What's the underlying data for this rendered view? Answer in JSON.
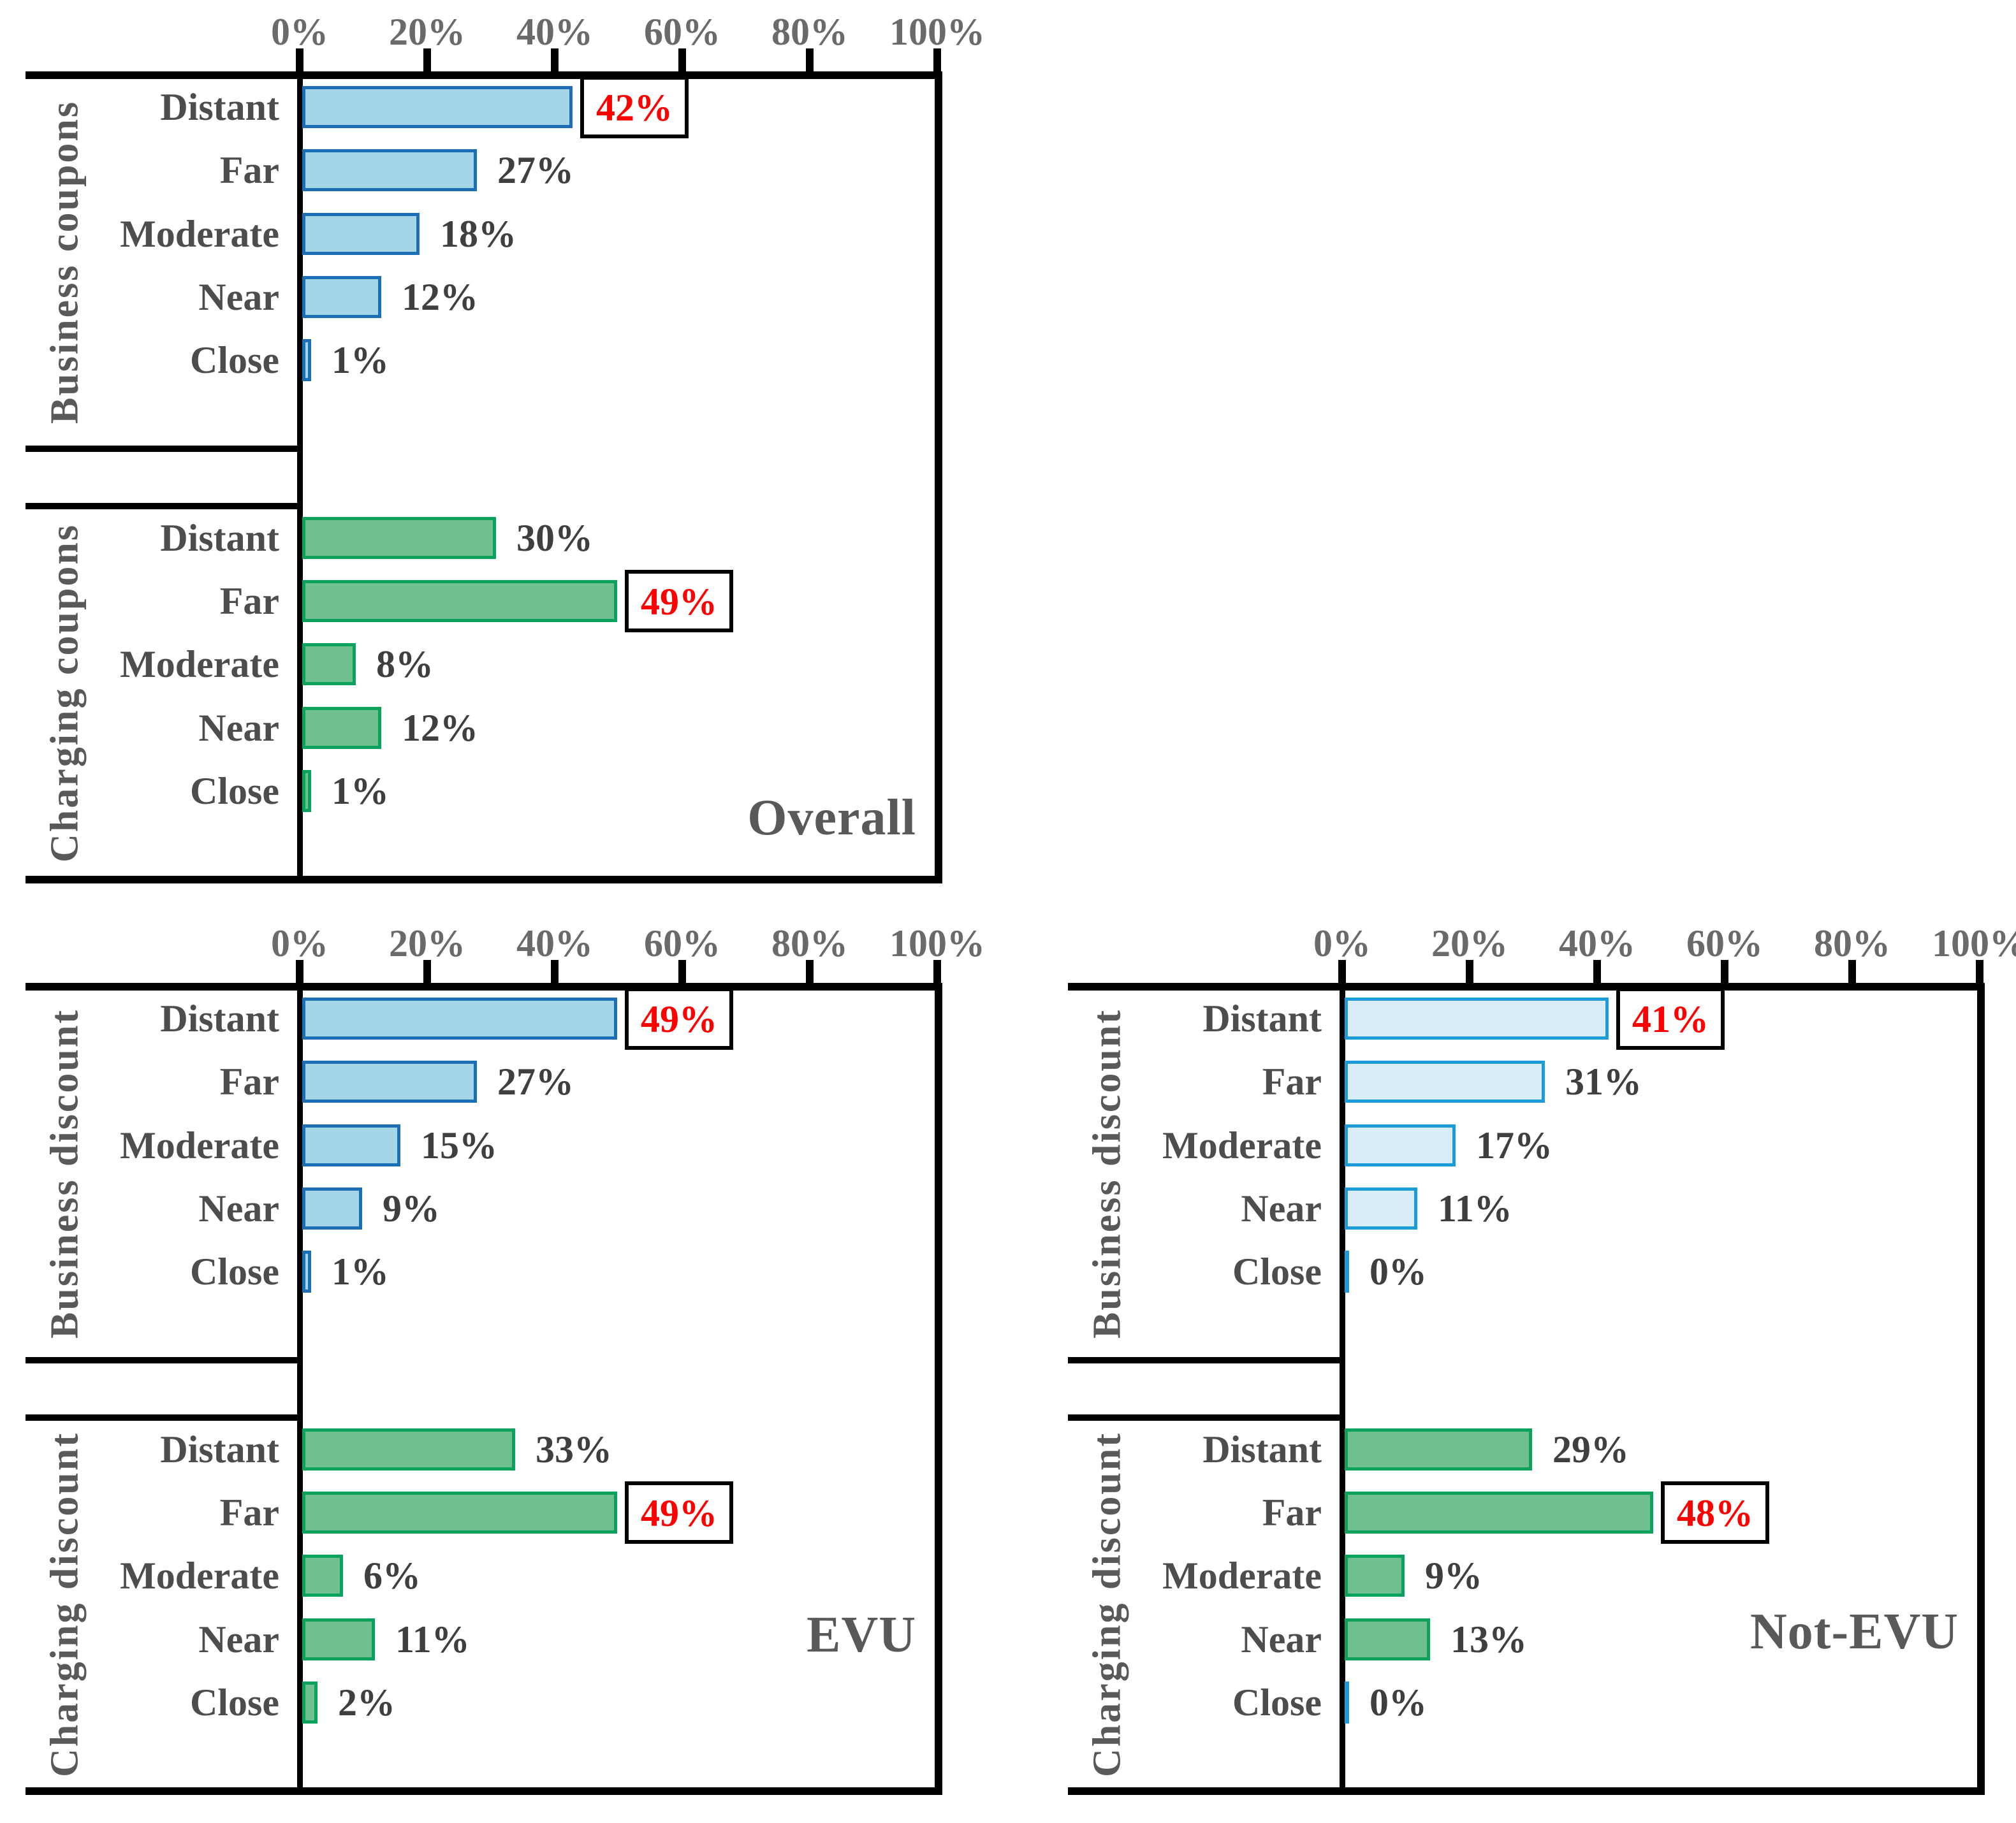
{
  "chart_data": {
    "type": "bar",
    "orientation": "horizontal",
    "unit": "percent",
    "xlim": [
      0,
      100
    ],
    "grid": false,
    "tick_labels": [
      "0%",
      "20%",
      "40%",
      "60%",
      "80%",
      "100%"
    ],
    "tick_values": [
      0,
      20,
      40,
      60,
      80,
      100
    ],
    "categories": [
      "Distant",
      "Far",
      "Moderate",
      "Near",
      "Close"
    ],
    "styles": {
      "blue": {
        "fill": "#A5D6E7",
        "border": "#1C6FB5"
      },
      "pale_blue": {
        "fill": "#D9EDF8",
        "border": "#1B9CD8"
      },
      "green": {
        "fill": "#6FBF8F",
        "border": "#0AA25C"
      }
    },
    "colors": {
      "frame": "#000000",
      "zero_sliver": "#1B9CD8",
      "tick_text": "#6a6a6a",
      "label_text": "#4d4d4d",
      "group_text": "#595959",
      "value_text": "#3f3f3f",
      "title_text": "#595959",
      "highlight_text": "#FF0000",
      "highlight_box_border": "#000000",
      "highlight_box_fill": "#FFFFFF"
    },
    "panels": [
      {
        "title": "Overall",
        "series": [
          {
            "name": "Business coupons",
            "style": "blue",
            "values": [
              42,
              27,
              18,
              12,
              1
            ],
            "value_labels": [
              "42%",
              "27%",
              "18%",
              "12%",
              "1%"
            ],
            "highlight_index": 0,
            "highlighted_value": "42%"
          },
          {
            "name": "Charging coupons",
            "style": "green",
            "values": [
              30,
              49,
              8,
              12,
              1
            ],
            "value_labels": [
              "30%",
              "49%",
              "8%",
              "12%",
              "1%"
            ],
            "highlight_index": 1,
            "highlighted_value": "49%"
          }
        ]
      },
      {
        "title": "EVU",
        "series": [
          {
            "name": "Business discount",
            "style": "blue",
            "values": [
              49,
              27,
              15,
              9,
              1
            ],
            "value_labels": [
              "49%",
              "27%",
              "15%",
              "9%",
              "1%"
            ],
            "highlight_index": 0,
            "highlighted_value": "49%"
          },
          {
            "name": "Charging discount",
            "style": "green",
            "values": [
              33,
              49,
              6,
              11,
              2
            ],
            "value_labels": [
              "33%",
              "49%",
              "6%",
              "11%",
              "2%"
            ],
            "highlight_index": 1,
            "highlighted_value": "49%"
          }
        ]
      },
      {
        "title": "Not-EVU",
        "series": [
          {
            "name": "Business discount",
            "style": "pale_blue",
            "values": [
              41,
              31,
              17,
              11,
              0
            ],
            "value_labels": [
              "41%",
              "31%",
              "17%",
              "11%",
              "0%"
            ],
            "highlight_index": 0,
            "highlighted_value": "41%"
          },
          {
            "name": "Charging discount",
            "style": "green",
            "values": [
              29,
              48,
              9,
              13,
              0
            ],
            "value_labels": [
              "29%",
              "48%",
              "9%",
              "13%",
              "0%"
            ],
            "highlight_index": 1,
            "highlighted_value": "48%"
          }
        ]
      }
    ]
  }
}
